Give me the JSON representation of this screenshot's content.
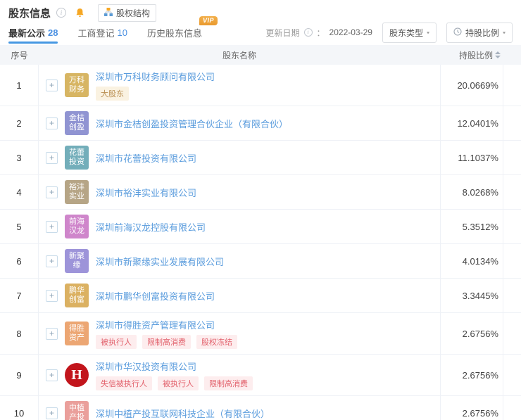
{
  "header": {
    "title": "股东信息",
    "equity_structure": "股权结构"
  },
  "icons": {
    "info": "i",
    "caret": "▾"
  },
  "tabs": [
    {
      "label": "最新公示",
      "count": "28",
      "active": true
    },
    {
      "label": "工商登记",
      "count": "10",
      "active": false
    },
    {
      "label": "历史股东信息",
      "count": "",
      "active": false,
      "vip": "VIP"
    }
  ],
  "toolbar": {
    "update_date_label": "更新日期",
    "colon": "：",
    "update_date": "2022-03-29",
    "shareholder_type_filter": "股东类型",
    "ratio_filter": "持股比例"
  },
  "table": {
    "header": {
      "index": "序号",
      "name": "股东名称",
      "ratio": "持股比例"
    },
    "expand_symbol": "+",
    "rows": [
      {
        "index": "1",
        "avatar": {
          "lines": [
            "万科",
            "财务"
          ],
          "bg": "#d7b563"
        },
        "name": "深圳市万科财务顾问有限公司",
        "tags": [
          {
            "text": "大股东",
            "type": "gold"
          }
        ],
        "ratio": "20.0669%"
      },
      {
        "index": "2",
        "avatar": {
          "lines": [
            "金桔",
            "创盈"
          ],
          "bg": "#9094d2"
        },
        "name": "深圳市金桔创盈投资管理合伙企业（有限合伙）",
        "tags": [],
        "ratio": "12.0401%"
      },
      {
        "index": "3",
        "avatar": {
          "lines": [
            "花蕾",
            "投资"
          ],
          "bg": "#73aeba"
        },
        "name": "深圳市花蕾投资有限公司",
        "tags": [],
        "ratio": "11.1037%"
      },
      {
        "index": "4",
        "avatar": {
          "lines": [
            "裕沣",
            "实业"
          ],
          "bg": "#b6a586"
        },
        "name": "深圳市裕沣实业有限公司",
        "tags": [],
        "ratio": "8.0268%"
      },
      {
        "index": "5",
        "avatar": {
          "lines": [
            "前海",
            "汉龙"
          ],
          "bg": "#cf86cb"
        },
        "name": "深圳前海汉龙控股有限公司",
        "tags": [],
        "ratio": "5.3512%"
      },
      {
        "index": "6",
        "avatar": {
          "lines": [
            "新聚",
            "缘"
          ],
          "bg": "#9d94d9"
        },
        "name": "深圳市新聚缘实业发展有限公司",
        "tags": [],
        "ratio": "4.0134%"
      },
      {
        "index": "7",
        "avatar": {
          "lines": [
            "鹏华",
            "创富"
          ],
          "bg": "#dbb162"
        },
        "name": "深圳市鹏华创富投资有限公司",
        "tags": [],
        "ratio": "3.3445%"
      },
      {
        "index": "8",
        "avatar": {
          "lines": [
            "得胜",
            "资产"
          ],
          "bg": "#eca673"
        },
        "name": "深圳市得胜资产管理有限公司",
        "tags": [
          {
            "text": "被执行人",
            "type": "red"
          },
          {
            "text": "限制高消费",
            "type": "red"
          },
          {
            "text": "股权冻结",
            "type": "red"
          }
        ],
        "ratio": "2.6756%"
      },
      {
        "index": "9",
        "avatar": {
          "logo": "H",
          "bg": "#c2151c",
          "shape": "circle"
        },
        "name": "深圳市华汉投资有限公司",
        "tags": [
          {
            "text": "失信被执行人",
            "type": "red"
          },
          {
            "text": "被执行人",
            "type": "red"
          },
          {
            "text": "限制高消费",
            "type": "red"
          }
        ],
        "ratio": "2.6756%"
      },
      {
        "index": "10",
        "avatar": {
          "lines": [
            "中植",
            "产投"
          ],
          "bg": "#ea9f9b"
        },
        "name": "深圳中植产投互联网科技企业（有限合伙）",
        "tags": [],
        "ratio": "2.6756%"
      }
    ]
  }
}
